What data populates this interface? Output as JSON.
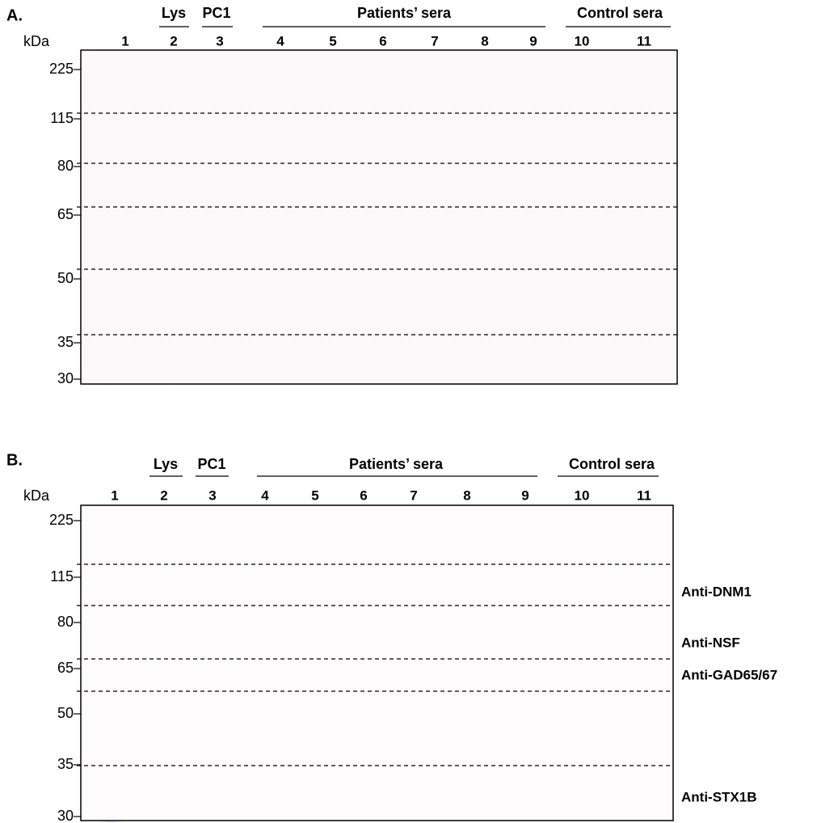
{
  "panels": [
    {
      "label": "A.",
      "unit": "kDa",
      "groups": [
        "Lys",
        "PC1",
        "Patients’ sera",
        "Control sera"
      ],
      "lanes": [
        "1",
        "2",
        "3",
        "4",
        "5",
        "6",
        "7",
        "8",
        "9",
        "10",
        "11"
      ],
      "markers": [
        "225",
        "115",
        "80",
        "65",
        "50",
        "35",
        "30"
      ]
    },
    {
      "label": "B.",
      "unit": "kDa",
      "groups": [
        "Lys",
        "PC1",
        "Patients’ sera",
        "Control sera"
      ],
      "lanes": [
        "1",
        "2",
        "3",
        "4",
        "5",
        "6",
        "7",
        "8",
        "9",
        "10",
        "11"
      ],
      "markers": [
        "225",
        "115",
        "80",
        "65",
        "50",
        "35",
        "30"
      ],
      "annotations": [
        "Anti-DNM1",
        "Anti-NSF",
        "Anti-GAD65/67",
        "Anti-STX1B"
      ]
    }
  ]
}
